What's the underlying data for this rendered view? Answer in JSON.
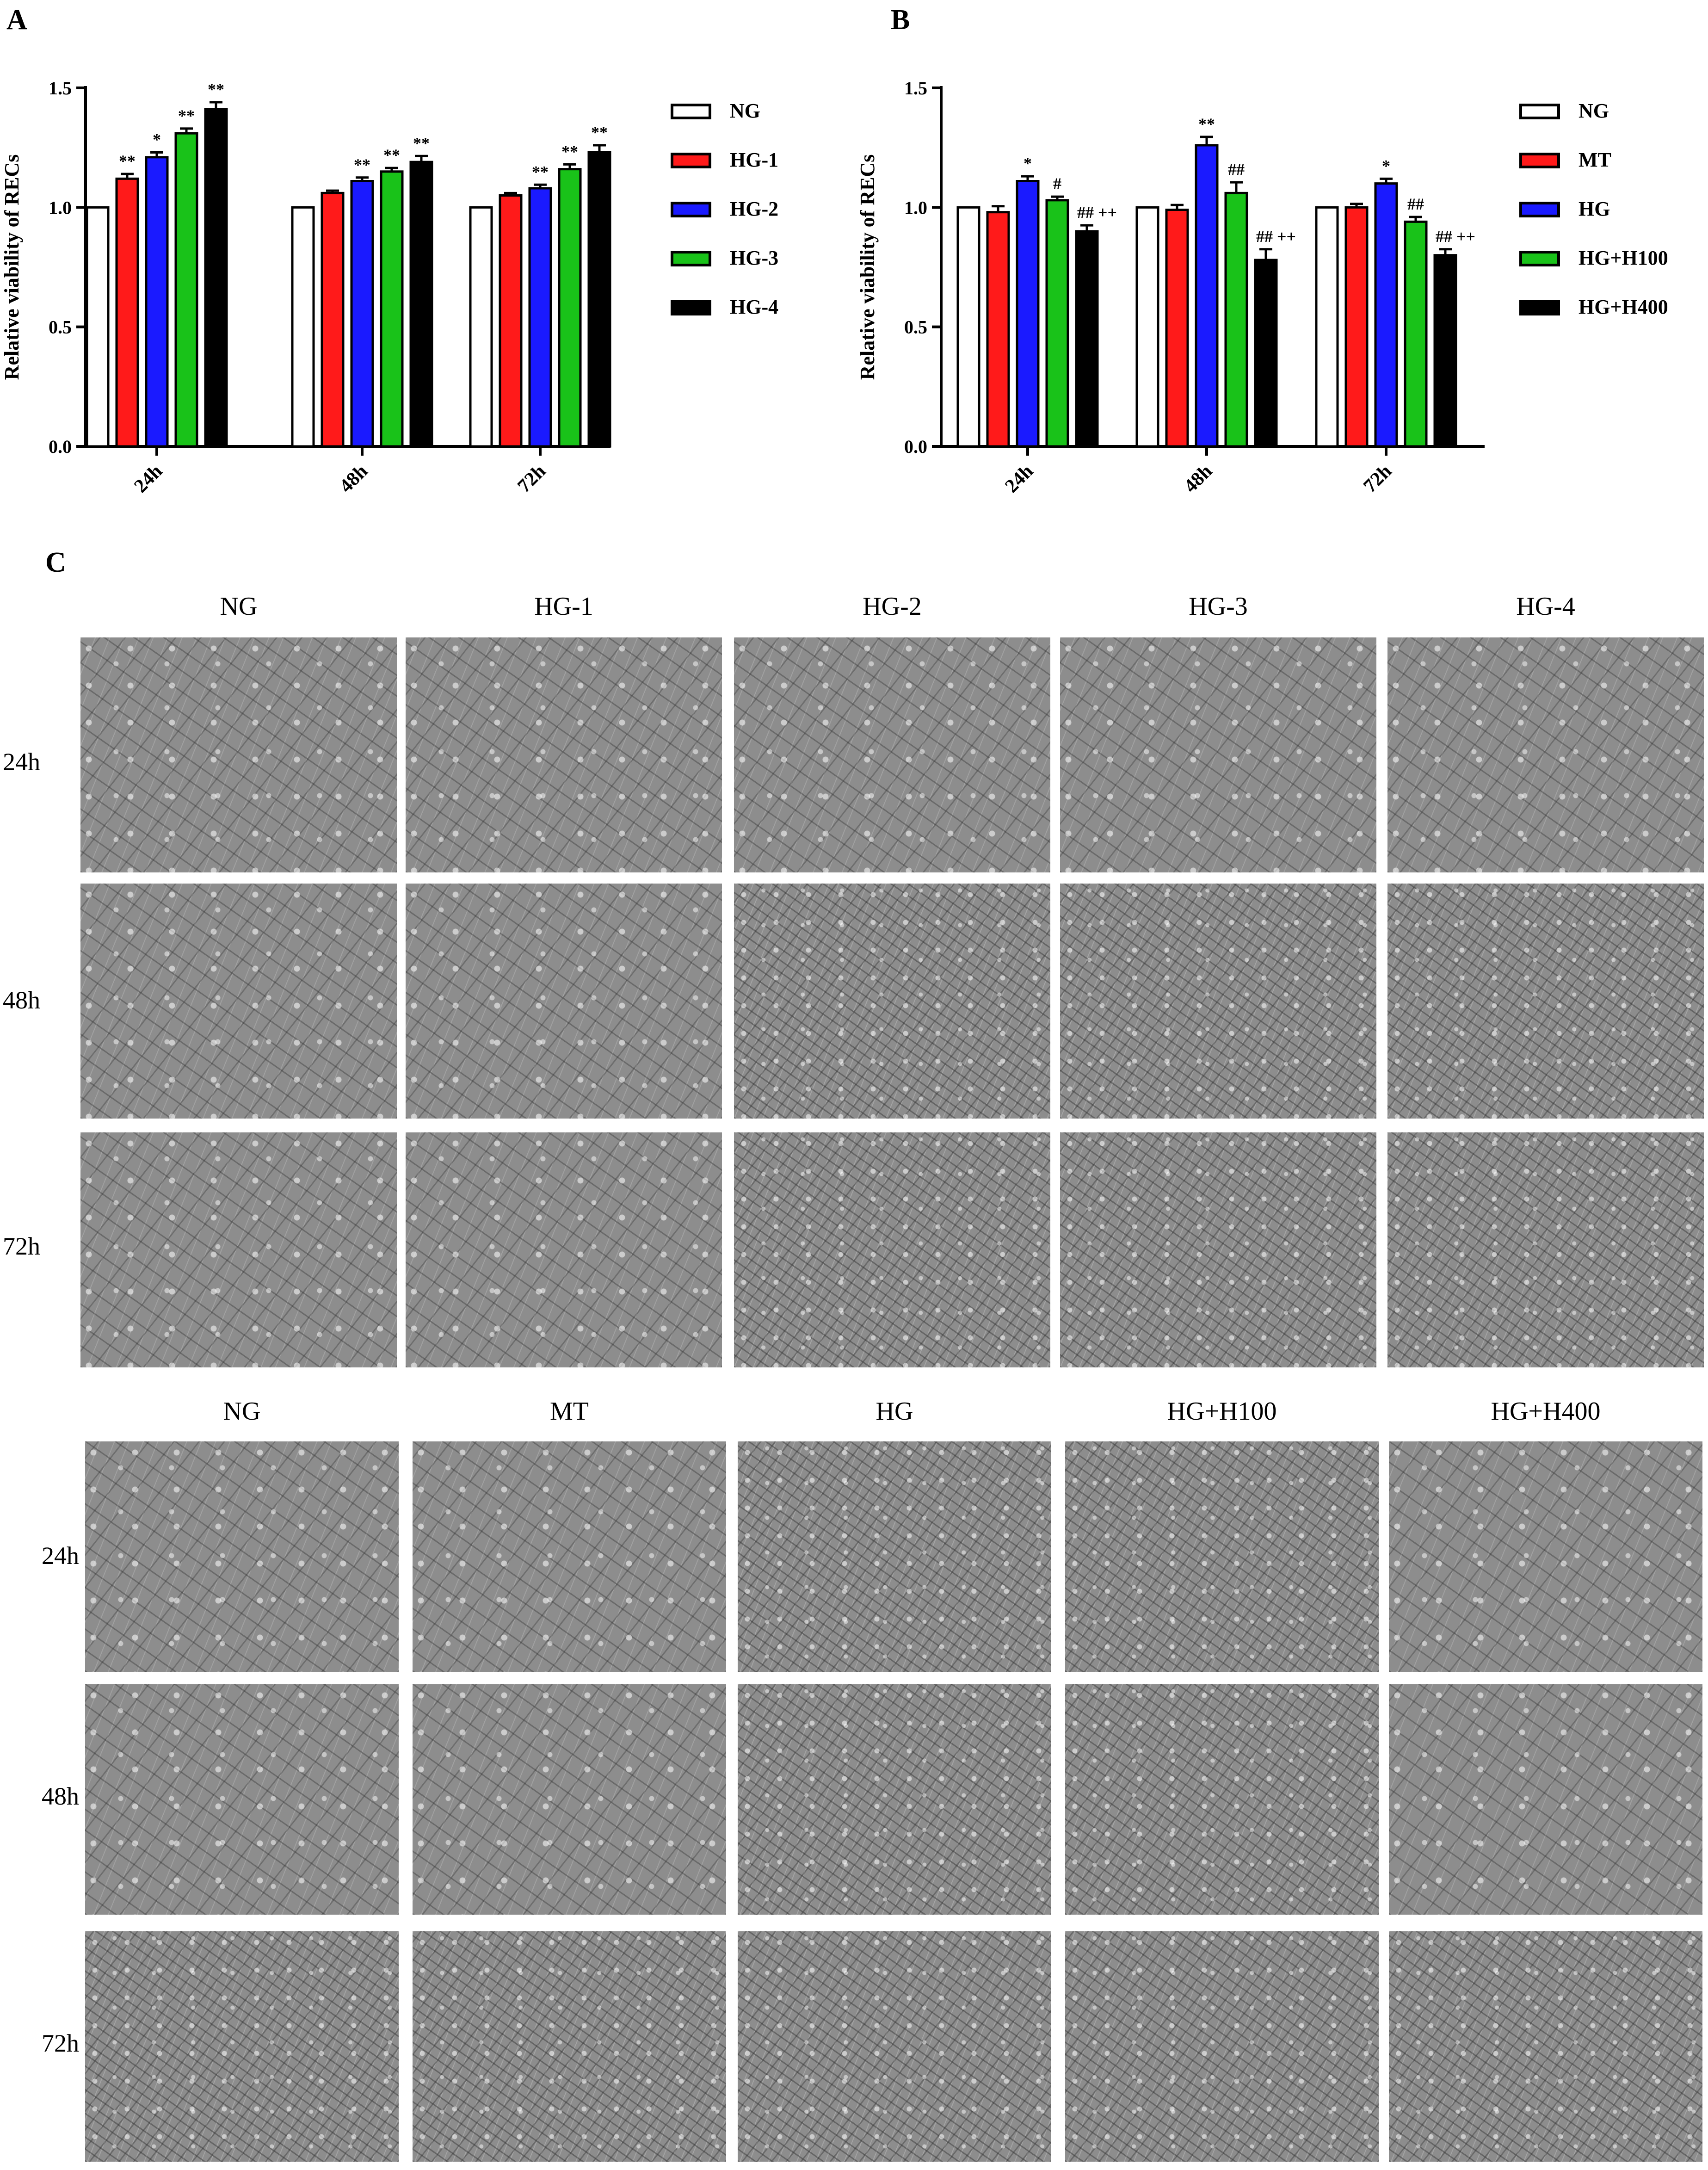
{
  "panels": {
    "a": "A",
    "b": "B",
    "c": "C"
  },
  "chart_data": [
    {
      "type": "bar",
      "ylabel": "Relative viability of RECs",
      "ylim": [
        0,
        1.5
      ],
      "yticks": [
        "0.0",
        "0.5",
        "1.0",
        "1.5"
      ],
      "categories": [
        "24h",
        "48h",
        "72h"
      ],
      "legend_position": "right",
      "series": [
        {
          "name": "NG",
          "color": "#ffffff",
          "values": [
            1.0,
            1.0,
            1.0
          ],
          "errors": [
            0,
            0,
            0
          ],
          "sig": [
            "",
            "",
            ""
          ]
        },
        {
          "name": "HG-1",
          "color": "#ff1a1a",
          "values": [
            1.12,
            1.06,
            1.05
          ],
          "errors": [
            0.02,
            0.01,
            0.01
          ],
          "sig": [
            "**",
            "",
            ""
          ]
        },
        {
          "name": "HG-2",
          "color": "#1a1aff",
          "values": [
            1.21,
            1.11,
            1.08
          ],
          "errors": [
            0.02,
            0.015,
            0.015
          ],
          "sig": [
            "*",
            "**",
            "**"
          ]
        },
        {
          "name": "HG-3",
          "color": "#19c219",
          "values": [
            1.31,
            1.15,
            1.16
          ],
          "errors": [
            0.02,
            0.015,
            0.02
          ],
          "sig": [
            "**",
            "**",
            "**"
          ]
        },
        {
          "name": "HG-4",
          "color": "#000000",
          "values": [
            1.41,
            1.19,
            1.23
          ],
          "errors": [
            0.03,
            0.025,
            0.03
          ],
          "sig": [
            "**",
            "**",
            "**"
          ]
        }
      ]
    },
    {
      "type": "bar",
      "ylabel": "Relative viability of RECs",
      "ylim": [
        0,
        1.5
      ],
      "yticks": [
        "0.0",
        "0.5",
        "1.0",
        "1.5"
      ],
      "categories": [
        "24h",
        "48h",
        "72h"
      ],
      "legend_position": "right",
      "series": [
        {
          "name": "NG",
          "color": "#ffffff",
          "values": [
            1.0,
            1.0,
            1.0
          ],
          "errors": [
            0,
            0,
            0
          ],
          "sig": [
            "",
            "",
            ""
          ]
        },
        {
          "name": "MT",
          "color": "#ff1a1a",
          "values": [
            0.98,
            0.99,
            1.0
          ],
          "errors": [
            0.025,
            0.02,
            0.015
          ],
          "sig": [
            "",
            "",
            ""
          ]
        },
        {
          "name": "HG",
          "color": "#1a1aff",
          "values": [
            1.11,
            1.26,
            1.1
          ],
          "errors": [
            0.02,
            0.035,
            0.02
          ],
          "sig": [
            "*",
            "**",
            "*"
          ]
        },
        {
          "name": "HG+H100",
          "color": "#19c219",
          "values": [
            1.03,
            1.06,
            0.94
          ],
          "errors": [
            0.015,
            0.045,
            0.02
          ],
          "sig": [
            "#",
            "##",
            "##"
          ]
        },
        {
          "name": "HG+H400",
          "color": "#000000",
          "values": [
            0.9,
            0.78,
            0.8
          ],
          "errors": [
            0.025,
            0.045,
            0.025
          ],
          "sig": [
            "## ++",
            "## ++",
            "## ++"
          ]
        }
      ]
    }
  ],
  "micrograph_grid_1": {
    "columns": [
      "NG",
      "HG-1",
      "HG-2",
      "HG-3",
      "HG-4"
    ],
    "rows": [
      "24h",
      "48h",
      "72h"
    ]
  },
  "micrograph_grid_2": {
    "columns": [
      "NG",
      "MT",
      "HG",
      "HG+H100",
      "HG+H400"
    ],
    "rows": [
      "24h",
      "48h",
      "72h"
    ]
  }
}
